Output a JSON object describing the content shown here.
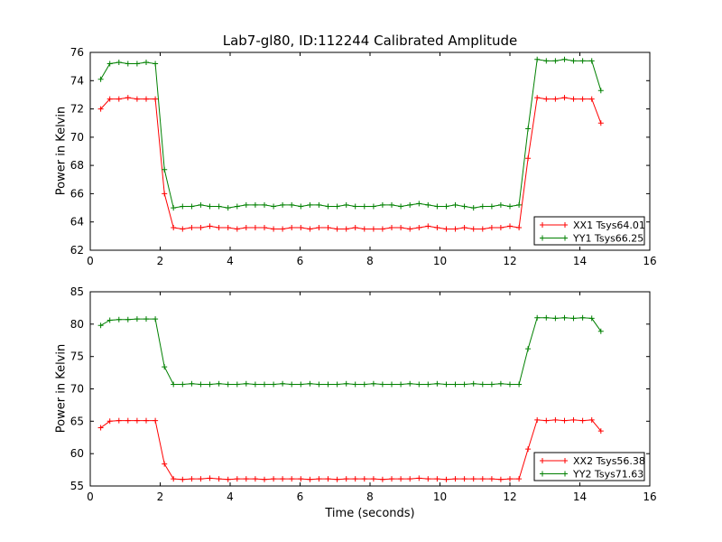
{
  "figure": {
    "title": "Lab7-gl80, ID:112244 Calibrated Amplitude",
    "xlabel": "Time (seconds)",
    "ylabel": "Power in Kelvin",
    "colors": {
      "xx_series": "#ff0000",
      "yy_series": "#008000",
      "axis": "#000000",
      "background": "#ffffff"
    }
  },
  "chart_data": [
    {
      "type": "line",
      "subplot": "top",
      "ylabel": "Power in Kelvin",
      "xlabel": "",
      "xlim": [
        0,
        16
      ],
      "ylim": [
        62,
        76
      ],
      "xticks": [
        0,
        2,
        4,
        6,
        8,
        10,
        12,
        14,
        16
      ],
      "yticks": [
        62,
        64,
        66,
        68,
        70,
        72,
        74,
        76
      ],
      "grid": false,
      "legend_position": "lower right",
      "x": [
        0.3,
        0.56,
        0.82,
        1.08,
        1.34,
        1.6,
        1.86,
        2.12,
        2.38,
        2.64,
        2.9,
        3.16,
        3.42,
        3.68,
        3.94,
        4.2,
        4.46,
        4.72,
        4.98,
        5.24,
        5.5,
        5.76,
        6.02,
        6.28,
        6.54,
        6.8,
        7.06,
        7.32,
        7.58,
        7.84,
        8.1,
        8.36,
        8.62,
        8.88,
        9.14,
        9.4,
        9.66,
        9.92,
        10.18,
        10.44,
        10.7,
        10.96,
        11.22,
        11.48,
        11.74,
        12.0,
        12.26,
        12.52,
        12.78,
        13.04,
        13.3,
        13.56,
        13.82,
        14.08,
        14.34,
        14.6
      ],
      "series": [
        {
          "name": "XX1 Tsys64.01",
          "color": "#ff0000",
          "marker": "plus",
          "values": [
            72.0,
            72.7,
            72.7,
            72.8,
            72.7,
            72.7,
            72.7,
            66.0,
            63.6,
            63.5,
            63.6,
            63.6,
            63.7,
            63.6,
            63.6,
            63.5,
            63.6,
            63.6,
            63.6,
            63.5,
            63.5,
            63.6,
            63.6,
            63.5,
            63.6,
            63.6,
            63.5,
            63.5,
            63.6,
            63.5,
            63.5,
            63.5,
            63.6,
            63.6,
            63.5,
            63.6,
            63.7,
            63.6,
            63.5,
            63.5,
            63.6,
            63.5,
            63.5,
            63.6,
            63.6,
            63.7,
            63.6,
            68.5,
            72.8,
            72.7,
            72.7,
            72.8,
            72.7,
            72.7,
            72.7,
            71.0
          ]
        },
        {
          "name": "YY1 Tsys66.25",
          "color": "#008000",
          "marker": "plus",
          "values": [
            74.1,
            75.2,
            75.3,
            75.2,
            75.2,
            75.3,
            75.2,
            67.7,
            65.0,
            65.1,
            65.1,
            65.2,
            65.1,
            65.1,
            65.0,
            65.1,
            65.2,
            65.2,
            65.2,
            65.1,
            65.2,
            65.2,
            65.1,
            65.2,
            65.2,
            65.1,
            65.1,
            65.2,
            65.1,
            65.1,
            65.1,
            65.2,
            65.2,
            65.1,
            65.2,
            65.3,
            65.2,
            65.1,
            65.1,
            65.2,
            65.1,
            65.0,
            65.1,
            65.1,
            65.2,
            65.1,
            65.2,
            70.6,
            75.5,
            75.4,
            75.4,
            75.5,
            75.4,
            75.4,
            75.4,
            73.3
          ]
        }
      ]
    },
    {
      "type": "line",
      "subplot": "bottom",
      "ylabel": "Power in Kelvin",
      "xlabel": "Time (seconds)",
      "xlim": [
        0,
        16
      ],
      "ylim": [
        55,
        85
      ],
      "xticks": [
        0,
        2,
        4,
        6,
        8,
        10,
        12,
        14,
        16
      ],
      "yticks": [
        55,
        60,
        65,
        70,
        75,
        80,
        85
      ],
      "grid": false,
      "legend_position": "lower right",
      "x": [
        0.3,
        0.56,
        0.82,
        1.08,
        1.34,
        1.6,
        1.86,
        2.12,
        2.38,
        2.64,
        2.9,
        3.16,
        3.42,
        3.68,
        3.94,
        4.2,
        4.46,
        4.72,
        4.98,
        5.24,
        5.5,
        5.76,
        6.02,
        6.28,
        6.54,
        6.8,
        7.06,
        7.32,
        7.58,
        7.84,
        8.1,
        8.36,
        8.62,
        8.88,
        9.14,
        9.4,
        9.66,
        9.92,
        10.18,
        10.44,
        10.7,
        10.96,
        11.22,
        11.48,
        11.74,
        12.0,
        12.26,
        12.52,
        12.78,
        13.04,
        13.3,
        13.56,
        13.82,
        14.08,
        14.34,
        14.6
      ],
      "series": [
        {
          "name": "XX2 Tsys56.38",
          "color": "#ff0000",
          "marker": "plus",
          "values": [
            64.0,
            65.0,
            65.1,
            65.1,
            65.1,
            65.1,
            65.1,
            58.4,
            56.1,
            56.0,
            56.1,
            56.1,
            56.2,
            56.1,
            56.0,
            56.1,
            56.1,
            56.1,
            56.0,
            56.1,
            56.1,
            56.1,
            56.1,
            56.0,
            56.1,
            56.1,
            56.0,
            56.1,
            56.1,
            56.1,
            56.1,
            56.0,
            56.1,
            56.1,
            56.1,
            56.2,
            56.1,
            56.1,
            56.0,
            56.1,
            56.1,
            56.1,
            56.1,
            56.1,
            56.0,
            56.1,
            56.1,
            60.7,
            65.2,
            65.1,
            65.2,
            65.1,
            65.2,
            65.1,
            65.2,
            63.5
          ]
        },
        {
          "name": "YY2 Tsys71.63",
          "color": "#008000",
          "marker": "plus",
          "values": [
            79.8,
            80.6,
            80.7,
            80.7,
            80.8,
            80.8,
            80.8,
            73.4,
            70.7,
            70.7,
            70.8,
            70.7,
            70.7,
            70.8,
            70.7,
            70.7,
            70.8,
            70.7,
            70.7,
            70.7,
            70.8,
            70.7,
            70.7,
            70.8,
            70.7,
            70.7,
            70.7,
            70.8,
            70.7,
            70.7,
            70.8,
            70.7,
            70.7,
            70.7,
            70.8,
            70.7,
            70.7,
            70.8,
            70.7,
            70.7,
            70.7,
            70.8,
            70.7,
            70.7,
            70.8,
            70.7,
            70.7,
            76.2,
            81.0,
            81.0,
            80.9,
            81.0,
            80.9,
            81.0,
            80.9,
            78.9
          ]
        }
      ]
    }
  ]
}
